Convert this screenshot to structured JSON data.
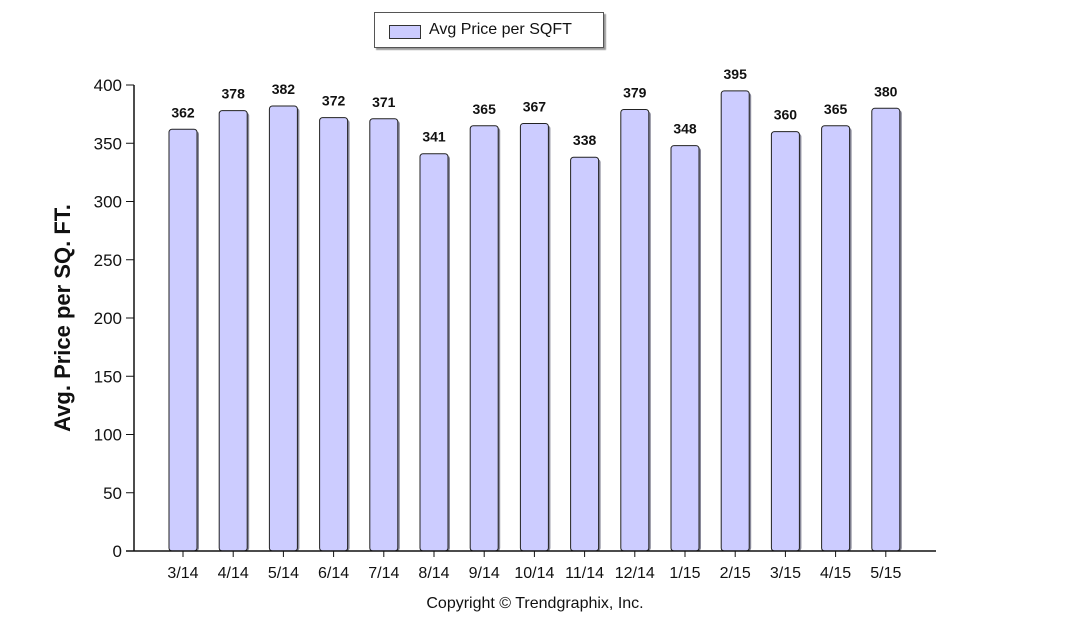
{
  "chart_data": {
    "type": "bar",
    "title": "",
    "xlabel": "",
    "ylabel": "Avg. Price per SQ. FT.",
    "ylim": [
      0,
      400
    ],
    "yticks": [
      0,
      50,
      100,
      150,
      200,
      250,
      300,
      350,
      400
    ],
    "grid": false,
    "legend_position": "top-center",
    "categories": [
      "3/14",
      "4/14",
      "5/14",
      "6/14",
      "7/14",
      "8/14",
      "9/14",
      "10/14",
      "11/14",
      "12/14",
      "1/15",
      "2/15",
      "3/15",
      "4/15",
      "5/15"
    ],
    "series": [
      {
        "name": "Avg Price per SQFT",
        "color": "#ccccff",
        "values": [
          362,
          378,
          382,
          372,
          371,
          341,
          365,
          367,
          338,
          379,
          348,
          395,
          360,
          365,
          380
        ]
      }
    ]
  },
  "legend": {
    "label": "Avg Price per SQFT"
  },
  "footer": {
    "copyright": "Copyright © Trendgraphix, Inc."
  }
}
